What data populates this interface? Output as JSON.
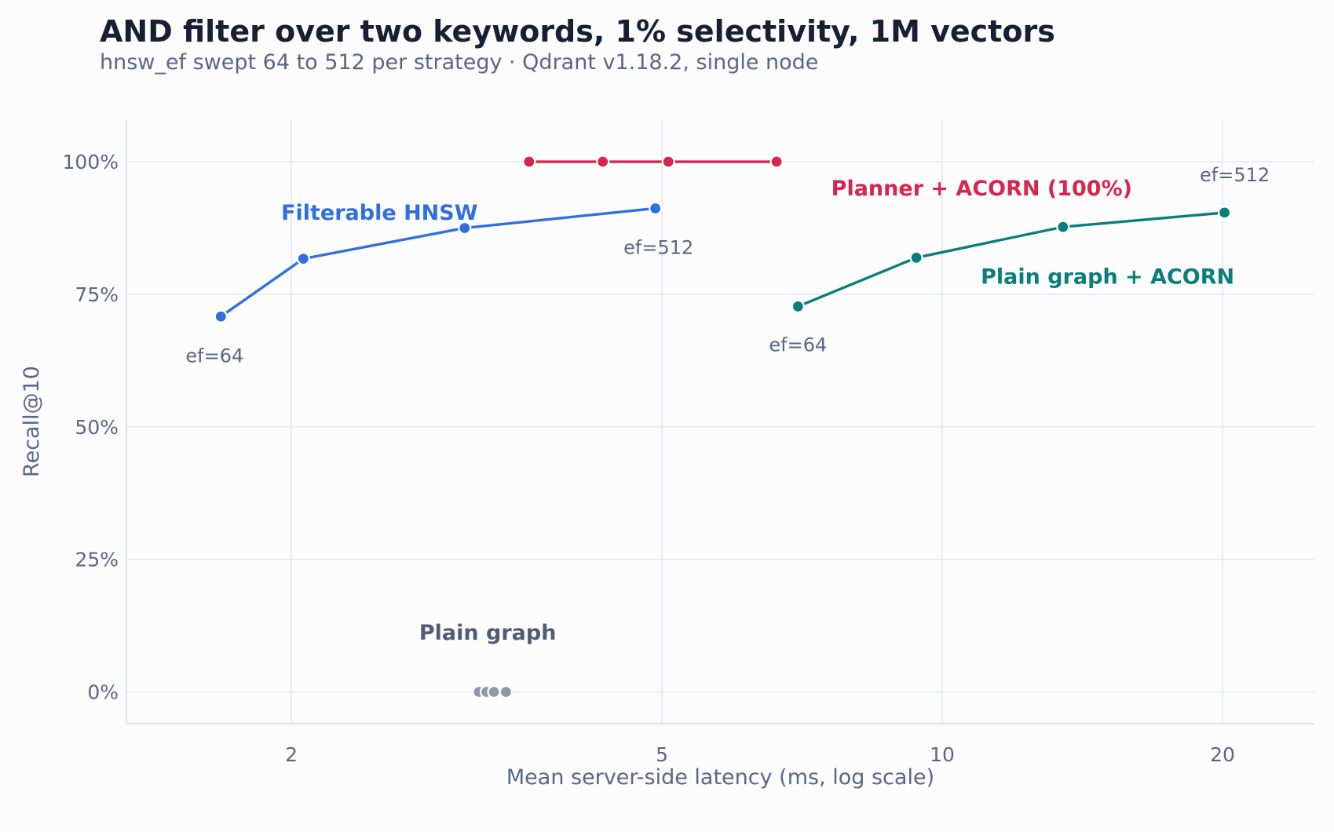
{
  "chart_data": {
    "type": "line",
    "title": "AND filter over two keywords, 1% selectivity, 1M vectors",
    "subtitle": "hnsw_ef swept 64 to 512 per strategy  ·  Qdrant v1.18.2, single node",
    "xlabel": "Mean server-side latency (ms, log scale)",
    "ylabel": "Recall@10",
    "x_scale": "log",
    "xlim": [
      1.33,
      25.1
    ],
    "ylim": [
      -0.06,
      1.08
    ],
    "x_ticks": [
      2,
      5,
      10,
      20
    ],
    "x_tick_labels": [
      "2",
      "5",
      "10",
      "20"
    ],
    "y_ticks": [
      0,
      0.25,
      0.5,
      0.75,
      1.0
    ],
    "y_tick_labels": [
      "0%",
      "25%",
      "50%",
      "75%",
      "100%"
    ],
    "grid": true,
    "legend": "none (series labelled directly on the plot)",
    "series": [
      {
        "name": "Filterable HNSW",
        "color": "#2f6fe0",
        "points": [
          {
            "x": 1.68,
            "y": 0.708
          },
          {
            "x": 2.06,
            "y": 0.817
          },
          {
            "x": 3.07,
            "y": 0.875
          },
          {
            "x": 4.92,
            "y": 0.912
          }
        ]
      },
      {
        "name": "Planner + ACORN (100%)",
        "color": "#d6264f",
        "points": [
          {
            "x": 3.6,
            "y": 1.0
          },
          {
            "x": 4.32,
            "y": 1.0
          },
          {
            "x": 5.08,
            "y": 1.0
          },
          {
            "x": 6.64,
            "y": 1.0
          }
        ]
      },
      {
        "name": "Plain graph + ACORN",
        "color": "#0a7f7a",
        "points": [
          {
            "x": 7.0,
            "y": 0.727
          },
          {
            "x": 9.38,
            "y": 0.819
          },
          {
            "x": 13.48,
            "y": 0.877
          },
          {
            "x": 20.1,
            "y": 0.904
          }
        ]
      },
      {
        "name": "Plain graph",
        "color": "#8e98ab",
        "points": [
          {
            "x": 3.18,
            "y": 0.0
          },
          {
            "x": 3.24,
            "y": 0.0
          },
          {
            "x": 3.3,
            "y": 0.0
          },
          {
            "x": 3.4,
            "y": 0.0
          }
        ]
      }
    ],
    "annotations": [
      {
        "text": "ef=64",
        "series": "Filterable HNSW",
        "point": "first"
      },
      {
        "text": "ef=512",
        "series": "Filterable HNSW",
        "point": "last"
      },
      {
        "text": "ef=64",
        "series": "Plain graph + ACORN",
        "point": "first"
      },
      {
        "text": "ef=512",
        "series": "Plain graph + ACORN",
        "point": "last"
      }
    ]
  }
}
